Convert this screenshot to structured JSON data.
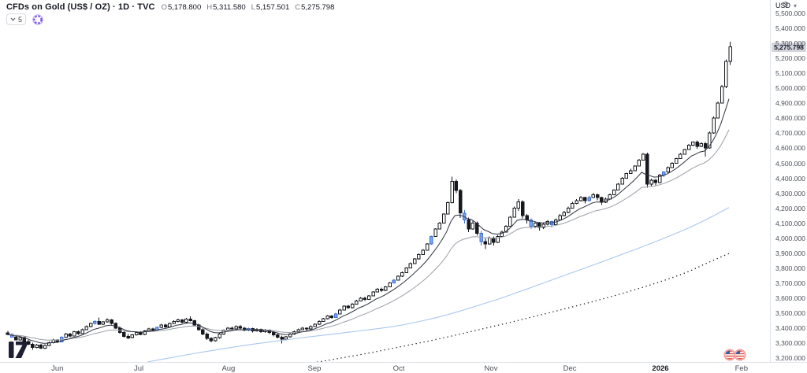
{
  "header": {
    "symbol_title": "CFDs on Gold (US$ / OZ) · 1D · TVC",
    "o_label": "O",
    "o_value": "5,178.800",
    "h_label": "H",
    "h_value": "5,311.580",
    "l_label": "L",
    "l_value": "5,157.501",
    "c_label": "C",
    "c_value": "5,275.798"
  },
  "toolbar": {
    "collapsed_count": "5"
  },
  "icons": {
    "currency_caret": "▾",
    "settings_gear": "⚙"
  },
  "price_axis": {
    "currency": "USD",
    "ticks": [
      5500,
      5400,
      5300,
      5200,
      5100,
      5000,
      4900,
      4800,
      4700,
      4600,
      4500,
      4400,
      4300,
      4200,
      4100,
      4000,
      3900,
      3800,
      3700,
      3600,
      3500,
      3400,
      3300,
      3200
    ],
    "last_price_label": "5,275.798",
    "last_price_value": 5275.798
  },
  "time_axis": {
    "ticks": [
      {
        "label": "Jun",
        "index": 12.3
      },
      {
        "label": "Jul",
        "index": 31.9
      },
      {
        "label": "Aug",
        "index": 53.5
      },
      {
        "label": "Sep",
        "index": 74.2
      },
      {
        "label": "Oct",
        "index": 94.5
      },
      {
        "label": "Nov",
        "index": 116.7
      },
      {
        "label": "Dec",
        "index": 135.7
      },
      {
        "label": "2026",
        "index": 157.5,
        "emphasis": true
      },
      {
        "label": "Feb",
        "index": 177.0
      }
    ]
  },
  "event_markers": {
    "count": 2,
    "icon": "us-flag",
    "approx_indices": [
      174,
      176
    ]
  },
  "chart_data": {
    "type": "candlestick",
    "title": "CFDs on Gold (US$ / OZ) · 1D · TVC",
    "ylim": [
      3175,
      5589
    ],
    "grid": false,
    "colors": {
      "up": "#ffffff",
      "bar": "#16181e",
      "blue_fill": "#7aa7f0",
      "blue_border": "#3d6fd0",
      "ma_fast": "#2f3241",
      "ma_slow": "#9b9ea8",
      "ma_long": "#a9c8ef",
      "ma_dotted": "#16181e"
    },
    "ma_fast_period": 9,
    "ma_slow_period": 21,
    "candles": [
      [
        3368,
        3382,
        3352,
        3358
      ],
      [
        3358,
        3366,
        3336,
        3341,
        "b"
      ],
      [
        3341,
        3352,
        3318,
        3322
      ],
      [
        3322,
        3345,
        3316,
        3338
      ],
      [
        3338,
        3344,
        3305,
        3311
      ],
      [
        3311,
        3322,
        3288,
        3293
      ],
      [
        3293,
        3302,
        3255,
        3272
      ],
      [
        3272,
        3295,
        3266,
        3288
      ],
      [
        3288,
        3294,
        3260,
        3267
      ],
      [
        3267,
        3292,
        3262,
        3284
      ],
      [
        3284,
        3312,
        3280,
        3303
      ],
      [
        3303,
        3330,
        3298,
        3322
      ],
      [
        3322,
        3328,
        3300,
        3309
      ],
      [
        3309,
        3345,
        3305,
        3340,
        "b"
      ],
      [
        3340,
        3368,
        3336,
        3361
      ],
      [
        3361,
        3370,
        3340,
        3349
      ],
      [
        3349,
        3382,
        3345,
        3376
      ],
      [
        3376,
        3385,
        3356,
        3364
      ],
      [
        3364,
        3398,
        3360,
        3391
      ],
      [
        3391,
        3418,
        3388,
        3411
      ],
      [
        3411,
        3437,
        3406,
        3431
      ],
      [
        3431,
        3452,
        3424,
        3446,
        "b"
      ],
      [
        3446,
        3470,
        3420,
        3427
      ],
      [
        3427,
        3448,
        3421,
        3441
      ],
      [
        3441,
        3466,
        3436,
        3456
      ],
      [
        3456,
        3460,
        3424,
        3431
      ],
      [
        3431,
        3440,
        3394,
        3401
      ],
      [
        3401,
        3410,
        3364,
        3372
      ],
      [
        3372,
        3380,
        3338,
        3346
      ],
      [
        3346,
        3360,
        3328,
        3336
      ],
      [
        3336,
        3362,
        3332,
        3356
      ],
      [
        3356,
        3380,
        3350,
        3371
      ],
      [
        3371,
        3378,
        3352,
        3359
      ],
      [
        3359,
        3388,
        3354,
        3381
      ],
      [
        3381,
        3402,
        3376,
        3396
      ],
      [
        3396,
        3402,
        3378,
        3386
      ],
      [
        3386,
        3412,
        3380,
        3406,
        "b"
      ],
      [
        3406,
        3428,
        3400,
        3421
      ],
      [
        3421,
        3430,
        3402,
        3409
      ],
      [
        3409,
        3437,
        3404,
        3431
      ],
      [
        3431,
        3452,
        3426,
        3446
      ],
      [
        3446,
        3462,
        3440,
        3456
      ],
      [
        3456,
        3460,
        3432,
        3439
      ],
      [
        3439,
        3468,
        3434,
        3461
      ],
      [
        3461,
        3478,
        3444,
        3451
      ],
      [
        3451,
        3456,
        3414,
        3421
      ],
      [
        3421,
        3430,
        3384,
        3391
      ],
      [
        3391,
        3400,
        3354,
        3361
      ],
      [
        3361,
        3372,
        3322,
        3331
      ],
      [
        3331,
        3340,
        3306,
        3316
      ],
      [
        3316,
        3342,
        3310,
        3336
      ],
      [
        3336,
        3368,
        3330,
        3361
      ],
      [
        3361,
        3392,
        3356,
        3386
      ],
      [
        3386,
        3408,
        3380,
        3401
      ],
      [
        3401,
        3410,
        3386,
        3394
      ],
      [
        3394,
        3418,
        3390,
        3411
      ],
      [
        3411,
        3420,
        3392,
        3399
      ],
      [
        3399,
        3408,
        3378,
        3386
      ],
      [
        3386,
        3404,
        3380,
        3397,
        "b"
      ],
      [
        3397,
        3404,
        3372,
        3381
      ],
      [
        3381,
        3400,
        3376,
        3392
      ],
      [
        3392,
        3398,
        3368,
        3376
      ],
      [
        3376,
        3394,
        3370,
        3387
      ],
      [
        3387,
        3392,
        3362,
        3371
      ],
      [
        3371,
        3380,
        3346,
        3356
      ],
      [
        3356,
        3364,
        3332,
        3341
      ],
      [
        3341,
        3350,
        3298,
        3326
      ],
      [
        3326,
        3348,
        3320,
        3342
      ],
      [
        3342,
        3368,
        3338,
        3361
      ],
      [
        3361,
        3384,
        3356,
        3377
      ],
      [
        3377,
        3398,
        3372,
        3391
      ],
      [
        3391,
        3408,
        3386,
        3401
      ],
      [
        3401,
        3406,
        3382,
        3394
      ],
      [
        3394,
        3418,
        3390,
        3412
      ],
      [
        3412,
        3432,
        3408,
        3426
      ],
      [
        3426,
        3452,
        3422,
        3446
      ],
      [
        3446,
        3468,
        3442,
        3462
      ],
      [
        3462,
        3488,
        3458,
        3481
      ],
      [
        3481,
        3488,
        3462,
        3471
      ],
      [
        3471,
        3502,
        3468,
        3496,
        "b"
      ],
      [
        3496,
        3528,
        3492,
        3521
      ],
      [
        3521,
        3552,
        3518,
        3546
      ],
      [
        3546,
        3554,
        3528,
        3536
      ],
      [
        3536,
        3568,
        3532,
        3561
      ],
      [
        3561,
        3588,
        3558,
        3581
      ],
      [
        3581,
        3608,
        3578,
        3601
      ],
      [
        3601,
        3610,
        3582,
        3591
      ],
      [
        3591,
        3622,
        3588,
        3616
      ],
      [
        3616,
        3648,
        3612,
        3641
      ],
      [
        3641,
        3668,
        3638,
        3661
      ],
      [
        3661,
        3670,
        3642,
        3651
      ],
      [
        3651,
        3682,
        3648,
        3676
      ],
      [
        3676,
        3708,
        3672,
        3701
      ],
      [
        3701,
        3728,
        3698,
        3721,
        "b"
      ],
      [
        3721,
        3752,
        3718,
        3746
      ],
      [
        3746,
        3778,
        3742,
        3771
      ],
      [
        3771,
        3808,
        3768,
        3801
      ],
      [
        3801,
        3838,
        3798,
        3831
      ],
      [
        3831,
        3868,
        3828,
        3861
      ],
      [
        3861,
        3898,
        3858,
        3891
      ],
      [
        3891,
        3928,
        3888,
        3921
      ],
      [
        3921,
        3968,
        3918,
        3961
      ],
      [
        3961,
        4018,
        3958,
        4011,
        "b"
      ],
      [
        4011,
        4068,
        4008,
        4061
      ],
      [
        4061,
        4108,
        4058,
        4101
      ],
      [
        4101,
        4168,
        4098,
        4161
      ],
      [
        4161,
        4245,
        4158,
        4238
      ],
      [
        4238,
        4412,
        4232,
        4378
      ],
      [
        4378,
        4392,
        4300,
        4318
      ],
      [
        4318,
        4330,
        4135,
        4168
      ],
      [
        4168,
        4188,
        4098,
        4121,
        "b"
      ],
      [
        4121,
        4138,
        4042,
        4062
      ],
      [
        4062,
        4118,
        4056,
        4102
      ],
      [
        4102,
        4112,
        4018,
        4032
      ],
      [
        4032,
        4048,
        3952,
        3978,
        "b"
      ],
      [
        3978,
        3998,
        3928,
        3962
      ],
      [
        3962,
        4012,
        3956,
        4002
      ],
      [
        4002,
        4012,
        3952,
        3972
      ],
      [
        3972,
        4022,
        3966,
        4012
      ],
      [
        4012,
        4052,
        4008,
        4042
      ],
      [
        4042,
        4088,
        4038,
        4081
      ],
      [
        4081,
        4148,
        4078,
        4141
      ],
      [
        4141,
        4212,
        4138,
        4201
      ],
      [
        4201,
        4262,
        4182,
        4242
      ],
      [
        4242,
        4252,
        4132,
        4151
      ],
      [
        4151,
        4162,
        4098,
        4121
      ],
      [
        4121,
        4132,
        4062,
        4081,
        "b"
      ],
      [
        4081,
        4112,
        4068,
        4102
      ],
      [
        4102,
        4108,
        4052,
        4071
      ],
      [
        4071,
        4102,
        4062,
        4092
      ],
      [
        4092,
        4122,
        4086,
        4112
      ],
      [
        4112,
        4118,
        4072,
        4091,
        "b"
      ],
      [
        4091,
        4132,
        4086,
        4122
      ],
      [
        4122,
        4162,
        4118,
        4151
      ],
      [
        4151,
        4182,
        4146,
        4172
      ],
      [
        4172,
        4212,
        4168,
        4201
      ],
      [
        4201,
        4242,
        4198,
        4232
      ],
      [
        4232,
        4262,
        4228,
        4251
      ],
      [
        4251,
        4282,
        4246,
        4271
      ],
      [
        4271,
        4278,
        4232,
        4251
      ],
      [
        4251,
        4282,
        4246,
        4272,
        "b"
      ],
      [
        4272,
        4302,
        4268,
        4291
      ],
      [
        4291,
        4298,
        4252,
        4271
      ],
      [
        4271,
        4278,
        4222,
        4241
      ],
      [
        4241,
        4272,
        4236,
        4262
      ],
      [
        4262,
        4298,
        4258,
        4291
      ],
      [
        4291,
        4328,
        4288,
        4321
      ],
      [
        4321,
        4368,
        4318,
        4361
      ],
      [
        4361,
        4408,
        4358,
        4401
      ],
      [
        4401,
        4438,
        4398,
        4431
      ],
      [
        4431,
        4462,
        4428,
        4451
      ],
      [
        4451,
        4488,
        4448,
        4481
      ],
      [
        4481,
        4528,
        4478,
        4521
      ],
      [
        4521,
        4568,
        4518,
        4561
      ],
      [
        4561,
        4572,
        4338,
        4361
      ],
      [
        4361,
        4398,
        4342,
        4388
      ],
      [
        4388,
        4396,
        4352,
        4371
      ],
      [
        4371,
        4428,
        4366,
        4421
      ],
      [
        4421,
        4448,
        4408,
        4441,
        "b"
      ],
      [
        4441,
        4478,
        4438,
        4471
      ],
      [
        4471,
        4508,
        4468,
        4501
      ],
      [
        4501,
        4538,
        4498,
        4531
      ],
      [
        4531,
        4568,
        4528,
        4561
      ],
      [
        4561,
        4598,
        4558,
        4591
      ],
      [
        4591,
        4628,
        4588,
        4621
      ],
      [
        4621,
        4648,
        4616,
        4641
      ],
      [
        4641,
        4652,
        4598,
        4612
      ],
      [
        4612,
        4642,
        4608,
        4632
      ],
      [
        4632,
        4641,
        4545,
        4602
      ],
      [
        4602,
        4712,
        4598,
        4701
      ],
      [
        4701,
        4812,
        4698,
        4801
      ],
      [
        4801,
        4912,
        4798,
        4901
      ],
      [
        4901,
        5022,
        4898,
        5011
      ],
      [
        5011,
        5192,
        5002,
        5181
      ],
      [
        5178.8,
        5311.58,
        5157.501,
        5275.798
      ]
    ],
    "ma_long_points": [
      [
        34,
        3175
      ],
      [
        40,
        3205
      ],
      [
        46,
        3235
      ],
      [
        52,
        3262
      ],
      [
        58,
        3288
      ],
      [
        64,
        3310
      ],
      [
        70,
        3332
      ],
      [
        76,
        3352
      ],
      [
        82,
        3372
      ],
      [
        88,
        3392
      ],
      [
        94,
        3415
      ],
      [
        100,
        3448
      ],
      [
        106,
        3488
      ],
      [
        112,
        3538
      ],
      [
        118,
        3590
      ],
      [
        124,
        3648
      ],
      [
        130,
        3708
      ],
      [
        136,
        3768
      ],
      [
        142,
        3828
      ],
      [
        148,
        3890
      ],
      [
        154,
        3952
      ],
      [
        160,
        4018
      ],
      [
        164,
        4065
      ],
      [
        168,
        4118
      ],
      [
        171,
        4160
      ],
      [
        174,
        4205
      ]
    ],
    "ma_dotted_points": [
      [
        73,
        3165
      ],
      [
        80,
        3198
      ],
      [
        88,
        3238
      ],
      [
        96,
        3282
      ],
      [
        104,
        3328
      ],
      [
        112,
        3378
      ],
      [
        120,
        3430
      ],
      [
        128,
        3484
      ],
      [
        136,
        3540
      ],
      [
        144,
        3598
      ],
      [
        152,
        3662
      ],
      [
        158,
        3715
      ],
      [
        164,
        3775
      ],
      [
        169,
        3838
      ],
      [
        174,
        3898
      ]
    ]
  }
}
